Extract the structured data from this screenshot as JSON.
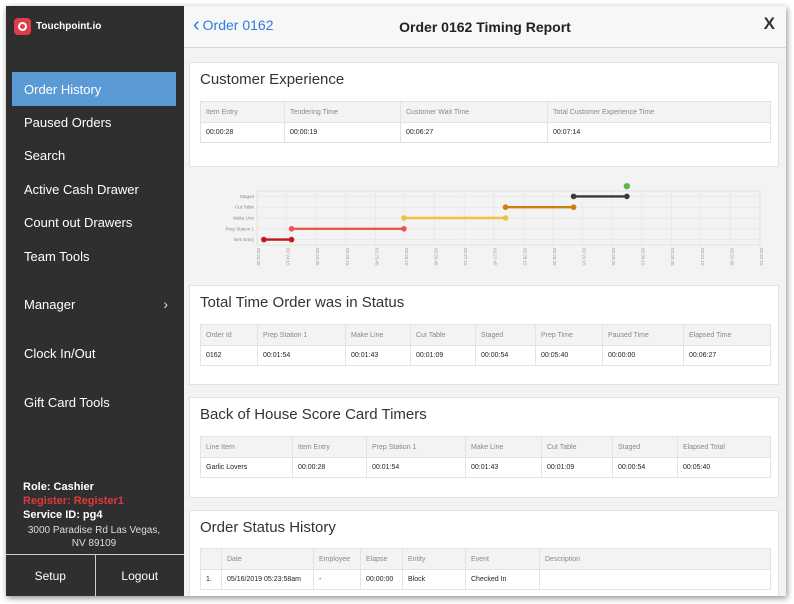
{
  "app": {
    "brand": "Touchpoint.io",
    "title": "Order 0162 Timing Report",
    "back_label": "Order 0162",
    "close_label": "X"
  },
  "sidebar": {
    "items": [
      {
        "label": "Order History",
        "active": true
      },
      {
        "label": "Paused Orders"
      },
      {
        "label": "Search"
      },
      {
        "label": "Active Cash Drawer"
      },
      {
        "label": "Count out Drawers"
      },
      {
        "label": "Team Tools"
      },
      {
        "label": "Manager",
        "chevron": "›"
      },
      {
        "label": "Clock In/Out"
      },
      {
        "label": "Gift Card Tools"
      }
    ],
    "role": "Role: Cashier",
    "register": "Register: Register1",
    "service_id": "Service ID: pg4",
    "address_line1": "3000 Paradise Rd  Las Vegas,",
    "address_line2": "NV  89109",
    "setup_label": "Setup",
    "logout_label": "Logout"
  },
  "customer_experience": {
    "title": "Customer Experience",
    "columns": [
      "Item Entry",
      "Tendering Time",
      "Customer Wait Time",
      "Total Customer Experience Time"
    ],
    "rows": [
      [
        "00:00:28",
        "00:00:19",
        "00:06:27",
        "00:07:14"
      ]
    ]
  },
  "chart_data": {
    "type": "line",
    "categories": [
      "Item Entry",
      "Prep Station 1",
      "Make Line",
      "Cut Table",
      "Staged"
    ],
    "x_tick_labels": [
      "02:23:45",
      "02:24:15",
      "02:24:45",
      "02:25:15",
      "02:25:45",
      "02:26:15",
      "02:26:45",
      "02:27:15",
      "02:27:45",
      "02:28:15",
      "02:28:45",
      "02:29:15",
      "02:29:45",
      "02:30:15",
      "02:30:45",
      "02:31:15",
      "02:31:45",
      "02:32:15"
    ],
    "series": [
      {
        "category": "Item Entry",
        "start": "02:23:52",
        "end": "02:24:20",
        "color": "#c2161a"
      },
      {
        "category": "Prep Station 1",
        "start": "02:24:20",
        "end": "02:26:14",
        "color": "#e8584d"
      },
      {
        "category": "Make Line",
        "start": "02:26:14",
        "end": "02:27:57",
        "color": "#f0c23e"
      },
      {
        "category": "Cut Table",
        "start": "02:27:57",
        "end": "02:29:06",
        "color": "#d07d12"
      },
      {
        "category": "Staged",
        "start": "02:29:06",
        "end": "02:30:00",
        "color": "#3a3a3a"
      },
      {
        "category": "Staged",
        "start": "02:30:00",
        "end": "02:30:00",
        "color": "#5cb848",
        "marker_only": true,
        "y_offset": "above"
      }
    ],
    "grid": true
  },
  "status_totals": {
    "title": "Total Time Order was in Status",
    "columns": [
      "Order Id",
      "Prep Station 1",
      "Make Line",
      "Cut Table",
      "Staged",
      "Prep Time",
      "Paused Time",
      "Elapsed Time"
    ],
    "rows": [
      [
        "0162",
        "00:01:54",
        "00:01:43",
        "00:01:09",
        "00:00:54",
        "00:05:40",
        "00:00:00",
        "00:06:27"
      ]
    ]
  },
  "boh_timers": {
    "title": "Back of House Score Card Timers",
    "columns": [
      "Line Item",
      "Item Entry",
      "Prep Station 1",
      "Make Line",
      "Cut Table",
      "Staged",
      "Elapsed Total"
    ],
    "rows": [
      [
        "Garlic Lovers",
        "00:00:28",
        "00:01:54",
        "00:01:43",
        "00:01:09",
        "00:00:54",
        "00:05:40"
      ]
    ]
  },
  "status_history": {
    "title": "Order Status History",
    "columns": [
      "",
      "Date",
      "Employee",
      "Elapse",
      "Entity",
      "Event",
      "Description"
    ],
    "rows": [
      [
        "1.",
        "05/16/2019 05:23:58am",
        "-",
        "00:00:00",
        "Block",
        "Checked In",
        ""
      ]
    ]
  },
  "colors": {
    "accent": "#5b9bd5",
    "link": "#2e7be0",
    "sidebar_bg": "#2f2f2f",
    "register_red": "#e0383e"
  }
}
